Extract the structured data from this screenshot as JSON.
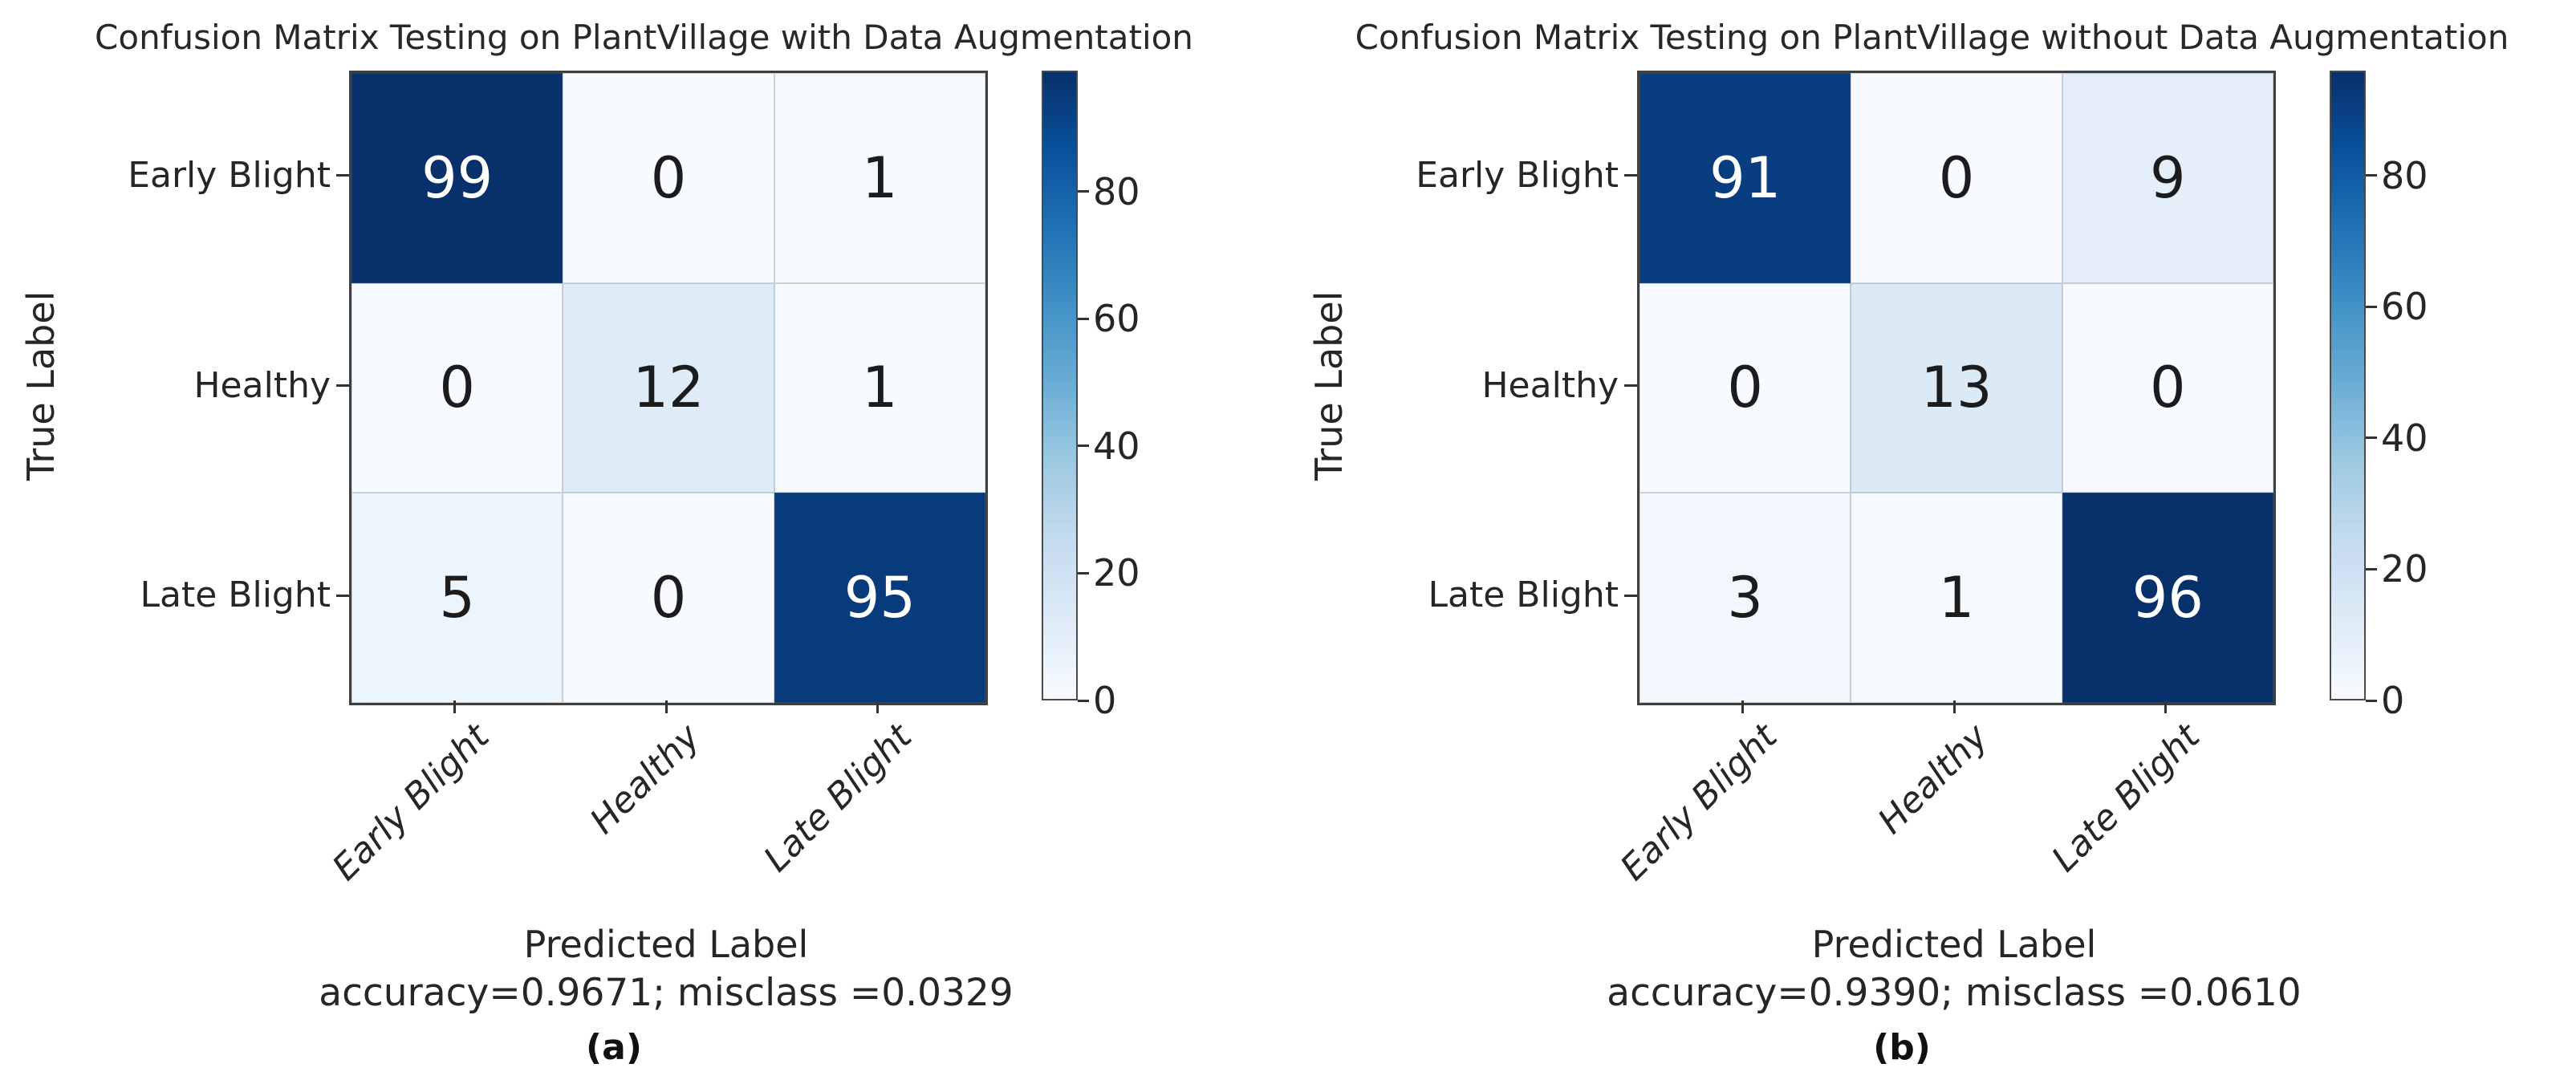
{
  "chart_data": [
    {
      "type": "heatmap",
      "title": "Confusion Matrix Testing on PlantVillage with Data Augmentation",
      "xlabel": "Predicted Label",
      "ylabel": "True Label",
      "annotation": "accuracy=0.9671; misclass =0.0329",
      "caption": "(a)",
      "x_categories": [
        "Early Blight",
        "Healthy",
        "Late Blight"
      ],
      "y_categories": [
        "Early Blight",
        "Healthy",
        "Late Blight"
      ],
      "values": [
        [
          99,
          0,
          1
        ],
        [
          0,
          12,
          1
        ],
        [
          5,
          0,
          95
        ]
      ],
      "colormap": "Blues",
      "colormap_light": "#f7fbff",
      "colormap_dark": "#08306b",
      "colorbar": {
        "vmin": 0,
        "vmax": 99,
        "ticks": [
          0,
          20,
          40,
          60,
          80
        ],
        "position": "right"
      },
      "grid": false
    },
    {
      "type": "heatmap",
      "title": "Confusion Matrix Testing on PlantVillage without Data Augmentation",
      "xlabel": "Predicted Label",
      "ylabel": "True Label",
      "annotation": "accuracy=0.9390; misclass =0.0610",
      "caption": "(b)",
      "x_categories": [
        "Early Blight",
        "Healthy",
        "Late Blight"
      ],
      "y_categories": [
        "Early Blight",
        "Healthy",
        "Late Blight"
      ],
      "values": [
        [
          91,
          0,
          9
        ],
        [
          0,
          13,
          0
        ],
        [
          3,
          1,
          96
        ]
      ],
      "colormap": "Blues",
      "colormap_light": "#f7fbff",
      "colormap_dark": "#08306b",
      "colorbar": {
        "vmin": 0,
        "vmax": 96,
        "ticks": [
          0,
          20,
          40,
          60,
          80
        ],
        "position": "right"
      },
      "grid": false
    }
  ]
}
